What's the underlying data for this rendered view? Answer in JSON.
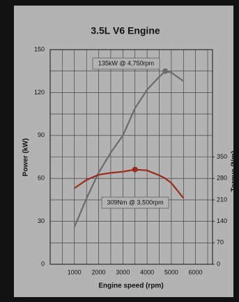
{
  "chart_data": {
    "type": "line",
    "title": "3.5L V6 Engine",
    "x_label": "Engine speed (rpm)",
    "y_label": "Power (kW)",
    "y2_label": "Torque (Nm)",
    "x": [
      1000,
      1500,
      2000,
      2500,
      3000,
      3500,
      4000,
      4500,
      4750,
      5000,
      5500
    ],
    "series": [
      {
        "name": "Power",
        "color": "#6b6b6b",
        "values": [
          26,
          46,
          64,
          78,
          90,
          109,
          122,
          131,
          135,
          134,
          128
        ],
        "marker_index": 8
      },
      {
        "name": "Torque",
        "color": "#9a2a1e",
        "axis": "y2",
        "values": [
          248,
          275,
          292,
          298,
          302,
          309,
          306,
          290,
          280,
          265,
          216
        ],
        "marker_index": 5
      }
    ],
    "annotations": [
      "135kW @ 4,750rpm",
      "309Nm @ 3,500rpm"
    ],
    "xlim": [
      0,
      6700
    ],
    "xticks": [
      1000,
      2000,
      3000,
      4000,
      5000,
      6000
    ],
    "minor_xticks": [
      500,
      1500,
      2500,
      3500,
      4500,
      5500,
      6500
    ],
    "ylim": [
      0,
      150
    ],
    "yticks": [
      0,
      30,
      60,
      90,
      120,
      150
    ],
    "minor_yticks": [
      15,
      45,
      75,
      105,
      135
    ],
    "y2lim": [
      0,
      700
    ],
    "y2ticks": [
      0,
      70,
      140,
      210,
      280,
      350
    ],
    "grid": true
  }
}
